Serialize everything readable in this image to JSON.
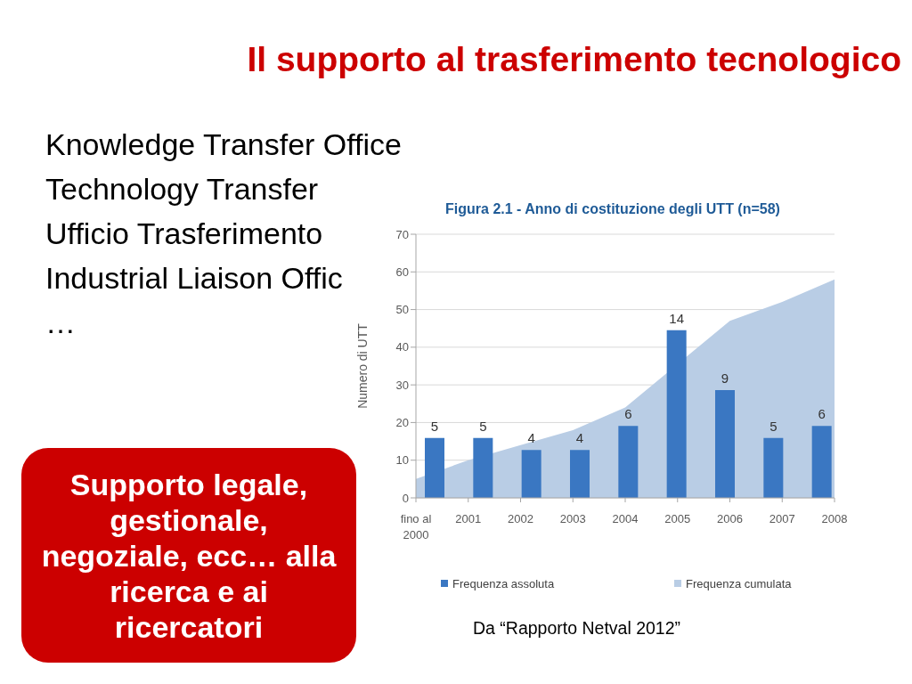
{
  "chart_data": {
    "type": "bar",
    "title": "Il supporto al trasferimento tecnologico",
    "subtitle": "Figura 2.1 - Anno di costituzione degli UTT (n=58)",
    "ylabel": "Numero di UTT",
    "categories": [
      "fino al 2000",
      "2001",
      "2002",
      "2003",
      "2004",
      "2005",
      "2006",
      "2007",
      "2008"
    ],
    "series": [
      {
        "name": "Frequenza assoluta",
        "axis": "y2",
        "color": "#3a77c2",
        "values": [
          5,
          5,
          4,
          4,
          6,
          14,
          9,
          5,
          6
        ],
        "value_labels": [
          "5",
          "5",
          "4",
          "4",
          "6",
          "14",
          "9",
          "5",
          "6"
        ]
      },
      {
        "name": "Frequenza cumulata",
        "type": "area",
        "color": "#b9cde5",
        "values": [
          5,
          10,
          14,
          18,
          24,
          null,
          47,
          52,
          58
        ]
      }
    ],
    "ylim": [
      0,
      70
    ],
    "yticks": [
      0,
      10,
      20,
      30,
      40,
      50,
      60,
      70
    ],
    "y2lim": [
      0,
      22
    ],
    "grid": "y",
    "legend": "bottom",
    "annotations": [
      "Knowledge Transfer Office",
      "Technology Transfer",
      "Ufficio Trasferimento",
      "Industrial Liaison Offic",
      "…",
      "Supporto legale,\ngestionale,\nnegoziale, ecc… alla\nricerca e ai\nricercatori",
      "Da “Rapporto Netval 2012”"
    ]
  }
}
